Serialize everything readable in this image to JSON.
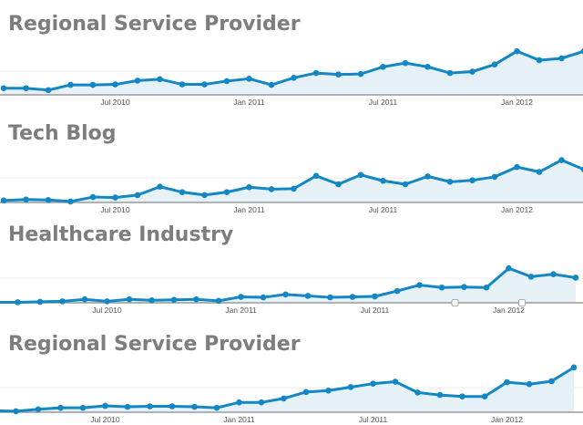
{
  "chart_data": [
    {
      "type": "area",
      "title": "Regional Service Provider",
      "categories": [
        "Feb 2010",
        "Mar 2010",
        "Apr 2010",
        "May 2010",
        "Jun 2010",
        "Jul 2010",
        "Aug 2010",
        "Sep 2010",
        "Oct 2010",
        "Nov 2010",
        "Dec 2010",
        "Jan 2011",
        "Feb 2011",
        "Mar 2011",
        "Apr 2011",
        "May 2011",
        "Jun 2011",
        "Jul 2011",
        "Aug 2011",
        "Sep 2011",
        "Oct 2011",
        "Nov 2011",
        "Dec 2011",
        "Jan 2012",
        "Feb 2012",
        "Mar 2012",
        "Apr 2012"
      ],
      "values": [
        14,
        14,
        10,
        21,
        21,
        22,
        30,
        33,
        22,
        22,
        29,
        34,
        21,
        36,
        46,
        43,
        44,
        59,
        67,
        59,
        46,
        49,
        64,
        92,
        73,
        77,
        92
      ],
      "xticks": [
        "Jul 2010",
        "Jan 2011",
        "Jul 2011",
        "Jan 2012"
      ],
      "ylim": [
        0,
        100
      ],
      "grid": true,
      "markers": []
    },
    {
      "type": "area",
      "title": "Tech Blog",
      "categories": [
        "Feb 2010",
        "Mar 2010",
        "Apr 2010",
        "May 2010",
        "Jun 2010",
        "Jul 2010",
        "Aug 2010",
        "Sep 2010",
        "Oct 2010",
        "Nov 2010",
        "Dec 2010",
        "Jan 2011",
        "Feb 2011",
        "Mar 2011",
        "Apr 2011",
        "May 2011",
        "Jun 2011",
        "Jul 2011",
        "Aug 2011",
        "Sep 2011",
        "Oct 2011",
        "Nov 2011",
        "Dec 2011",
        "Jan 2012",
        "Feb 2012",
        "Mar 2012",
        "Apr 2012"
      ],
      "values": [
        4,
        6,
        5,
        2,
        11,
        10,
        15,
        32,
        21,
        15,
        21,
        31,
        27,
        28,
        54,
        37,
        56,
        44,
        37,
        53,
        42,
        45,
        52,
        72,
        62,
        86,
        67
      ],
      "xticks": [
        "Jul 2010",
        "Jan 2011",
        "Jul 2011",
        "Jan 2012"
      ],
      "ylim": [
        0,
        100
      ],
      "grid": true,
      "markers": []
    },
    {
      "type": "area",
      "title": "Healthcare Industry",
      "categories": [
        "Feb 2010",
        "Mar 2010",
        "Apr 2010",
        "May 2010",
        "Jun 2010",
        "Jul 2010",
        "Aug 2010",
        "Sep 2010",
        "Oct 2010",
        "Nov 2010",
        "Dec 2010",
        "Jan 2011",
        "Feb 2011",
        "Mar 2011",
        "Apr 2011",
        "May 2011",
        "Jun 2011",
        "Jul 2011",
        "Aug 2011",
        "Sep 2011",
        "Oct 2011",
        "Nov 2011",
        "Dec 2011",
        "Jan 2012",
        "Feb 2012",
        "Mar 2012",
        "Apr 2012"
      ],
      "values": [
        1,
        1,
        2,
        3,
        7,
        3,
        7,
        5,
        6,
        7,
        4,
        12,
        11,
        17,
        14,
        11,
        12,
        13,
        24,
        36,
        31,
        32,
        31,
        70,
        53,
        58,
        51
      ],
      "xticks": [
        "Jul 2010",
        "Jan 2011",
        "Jul 2011",
        "Jan 2012"
      ],
      "ylim": [
        0,
        100
      ],
      "grid": true,
      "markers": [
        "Nov 2011",
        "Feb 2012"
      ]
    },
    {
      "type": "area",
      "title": "Regional Service Provider",
      "categories": [
        "Feb 2010",
        "Mar 2010",
        "Apr 2010",
        "May 2010",
        "Jun 2010",
        "Jul 2010",
        "Aug 2010",
        "Sep 2010",
        "Oct 2010",
        "Nov 2010",
        "Dec 2010",
        "Jan 2011",
        "Feb 2011",
        "Mar 2011",
        "Apr 2011",
        "May 2011",
        "Jun 2011",
        "Jul 2011",
        "Aug 2011",
        "Sep 2011",
        "Oct 2011",
        "Nov 2011",
        "Dec 2011",
        "Jan 2012",
        "Feb 2012",
        "Mar 2012",
        "Apr 2012"
      ],
      "values": [
        3,
        2,
        6,
        9,
        9,
        13,
        11,
        12,
        12,
        11,
        9,
        20,
        20,
        28,
        41,
        44,
        51,
        58,
        62,
        40,
        35,
        32,
        32,
        61,
        57,
        63,
        91
      ],
      "xticks": [
        "Jul 2010",
        "Jan 2011",
        "Jul 2011",
        "Jan 2012"
      ],
      "ylim": [
        0,
        100
      ],
      "grid": true,
      "markers": []
    }
  ],
  "colors": {
    "line": "#1387c4",
    "fill": "#e5f1f7",
    "title": "#7d7d7d",
    "axis": "#9a9a9a",
    "grid": "#eeeeee"
  }
}
